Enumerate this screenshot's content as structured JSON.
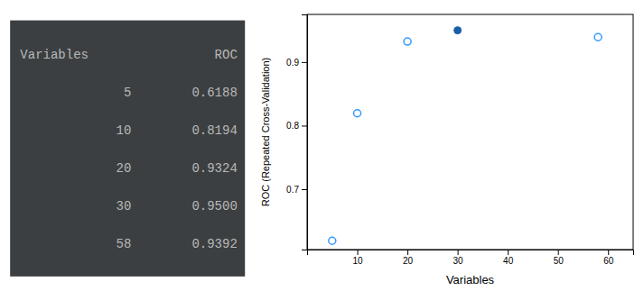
{
  "chart_data": [
    {
      "type": "table",
      "color": "#3c3f41",
      "columns": [
        "Variables",
        "ROC"
      ],
      "rows": [
        [
          "5",
          "0.6188"
        ],
        [
          "10",
          "0.8194"
        ],
        [
          "20",
          "0.9324"
        ],
        [
          "30",
          "0.9500"
        ],
        [
          "58",
          "0.9392"
        ]
      ]
    },
    {
      "type": "scatter",
      "xlabel": "Variables",
      "ylabel": "ROC (Repeated Cross-Validation)",
      "xlim": [
        0,
        65
      ],
      "ylim": [
        0.605,
        0.975
      ],
      "xticks": [
        10,
        20,
        30,
        40,
        50,
        60
      ],
      "yticks": [
        0.7,
        0.8,
        0.9
      ],
      "grid": false,
      "series": [
        {
          "color": "#3399FF",
          "marker": "circle-open",
          "x": [
            5,
            10,
            20,
            58
          ],
          "values": [
            0.6188,
            0.8194,
            0.9324,
            0.9392
          ]
        },
        {
          "color": "#1A5FA8",
          "marker": "circle",
          "x": [
            30
          ],
          "values": [
            0.95
          ]
        }
      ]
    }
  ]
}
